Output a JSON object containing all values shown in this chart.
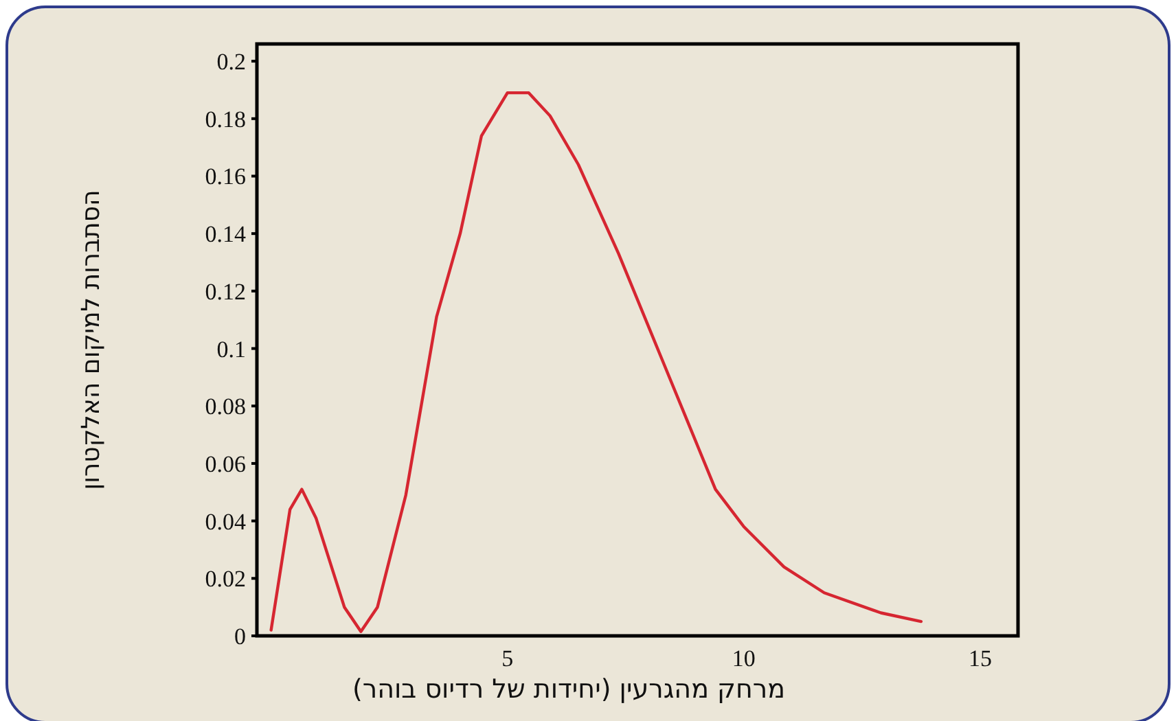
{
  "chart_data": {
    "type": "line",
    "xlabel": "מרחק מהגרעין  (יחידות של רדיוס בוהר)",
    "ylabel": "הסתברות למיקום האלקטרון",
    "xlim": [
      -0.3,
      15.8
    ],
    "ylim": [
      0,
      0.206
    ],
    "xticks": [
      5,
      10,
      15
    ],
    "yticks": [
      0,
      0.02,
      0.04,
      0.06,
      0.08,
      0.1,
      0.12,
      0.14,
      0.16,
      0.18,
      0.2
    ],
    "series": [
      {
        "color": "#d62631",
        "x": [
          0,
          0.4,
          0.65,
          0.95,
          1.55,
          1.9,
          2.25,
          2.85,
          3.5,
          4.0,
          4.45,
          5.0,
          5.45,
          5.9,
          6.5,
          7.35,
          8.2,
          8.8,
          9.4,
          10.0,
          10.85,
          11.7,
          12.9,
          13.75
        ],
        "values": [
          0.002,
          0.044,
          0.051,
          0.041,
          0.01,
          0.0015,
          0.01,
          0.049,
          0.111,
          0.14,
          0.174,
          0.189,
          0.189,
          0.181,
          0.164,
          0.133,
          0.099,
          0.075,
          0.051,
          0.038,
          0.024,
          0.015,
          0.008,
          0.005
        ]
      }
    ]
  }
}
